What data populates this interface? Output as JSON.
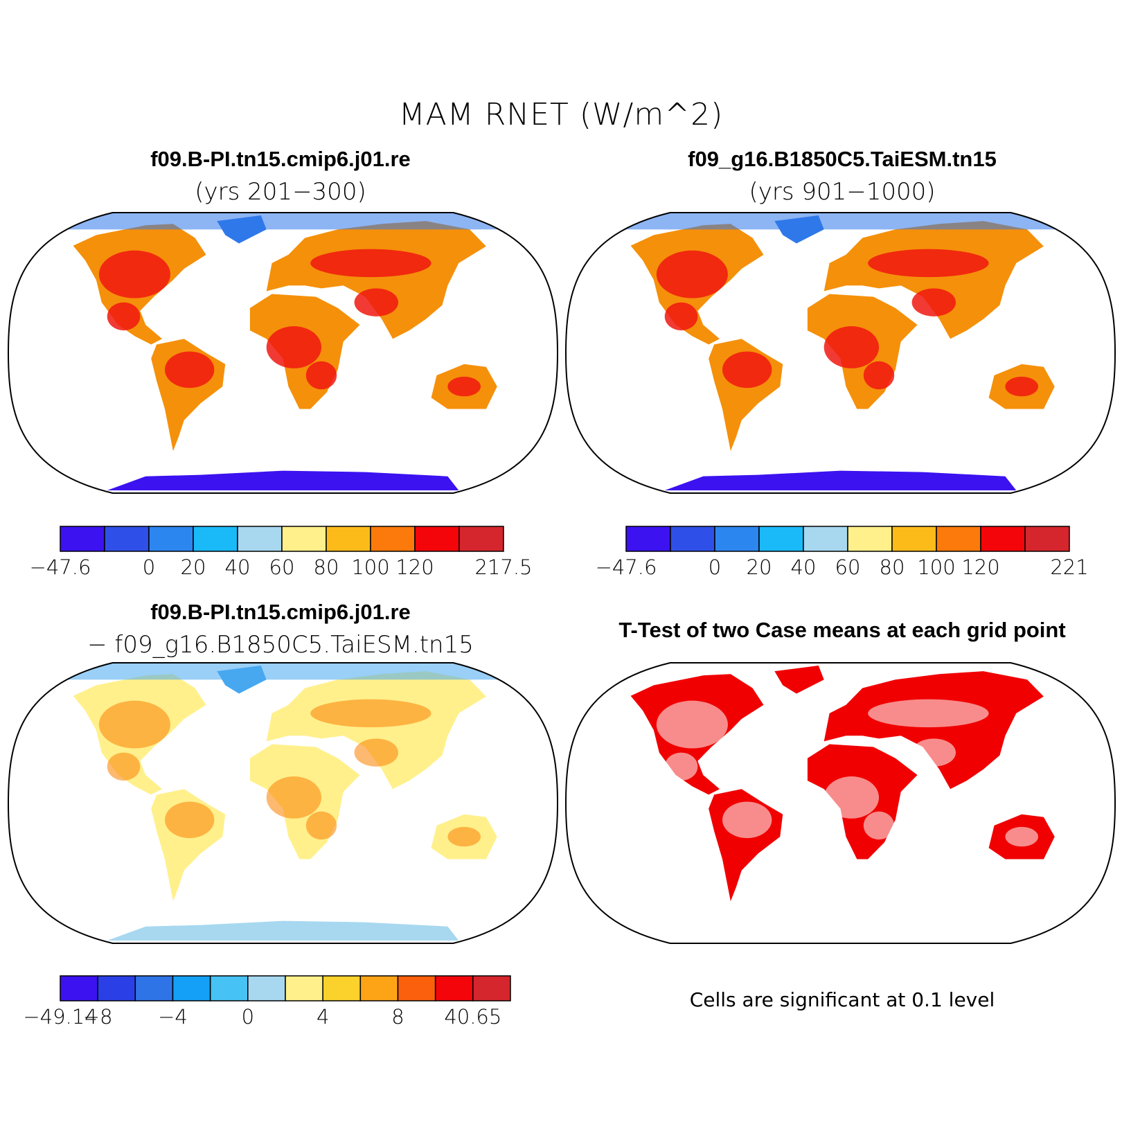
{
  "title": "MAM RNET (W/m^2)",
  "panels": [
    {
      "id": "case1",
      "title": "f09.B-PI.tn15.cmip6.j01.re",
      "subtitle": "(yrs 201−300)",
      "colorbar": {
        "colors": [
          "#3c12f0",
          "#2f50e8",
          "#2c86f0",
          "#1abaf8",
          "#a7d8f0",
          "#fff08c",
          "#fdbb1a",
          "#fb7a0b",
          "#f4050a",
          "#d4262c"
        ],
        "tick_labels": [
          "−47.6",
          "",
          "0",
          "20",
          "40",
          "60",
          "80",
          "100",
          "120",
          "",
          "217.5"
        ]
      }
    },
    {
      "id": "case2",
      "title": "f09_g16.B1850C5.TaiESM.tn15",
      "subtitle": "(yrs 901−1000)",
      "colorbar": {
        "colors": [
          "#3c12f0",
          "#2f50e8",
          "#2c86f0",
          "#1abaf8",
          "#a7d8f0",
          "#fff08c",
          "#fdbb1a",
          "#fb7a0b",
          "#f4050a",
          "#d4262c"
        ],
        "tick_labels": [
          "−47.6",
          "",
          "0",
          "20",
          "40",
          "60",
          "80",
          "100",
          "120",
          "",
          "221"
        ]
      }
    },
    {
      "id": "difference",
      "title": "f09.B-PI.tn15.cmip6.j01.re",
      "subtitle": "− f09_g16.B1850C5.TaiESM.tn15",
      "colorbar": {
        "colors": [
          "#3c12f0",
          "#2a40e6",
          "#2f74e6",
          "#14a0f6",
          "#47c2f4",
          "#a7d8f0",
          "#fff08c",
          "#fbd22b",
          "#fda416",
          "#fb600c",
          "#f4050a",
          "#d4262c"
        ],
        "tick_labels": [
          "−49.14",
          "−8",
          "",
          "−4",
          "",
          "0",
          "",
          "4",
          "",
          "8",
          "",
          "40.65"
        ]
      }
    },
    {
      "id": "ttest",
      "title": "T-Test of two Case means at each grid point",
      "note": "Cells are significant at 0.1 level",
      "significant_color": "#f00000"
    }
  ]
}
